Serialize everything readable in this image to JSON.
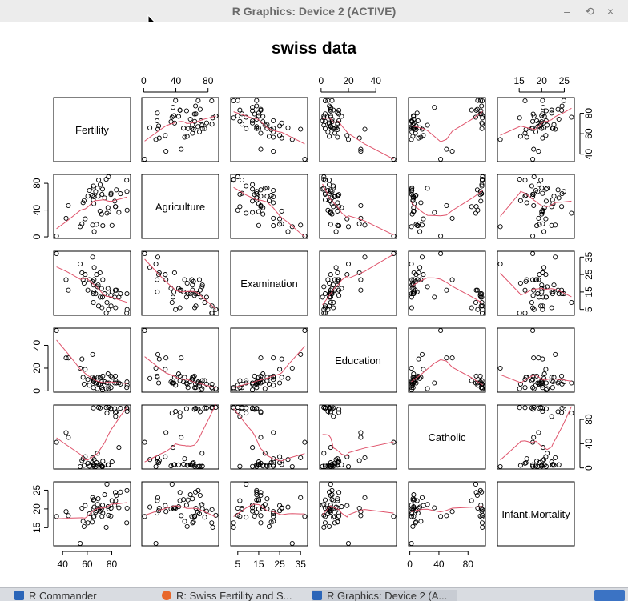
{
  "window": {
    "title": "R Graphics: Device 2 (ACTIVE)",
    "minimize_glyph": "–",
    "restore_glyph": "⟲",
    "close_glyph": "×"
  },
  "taskbar": {
    "items": [
      {
        "label": "R Commander",
        "icon": "r-icon"
      },
      {
        "label": "R: Swiss Fertility and S...",
        "icon": "firefox-icon"
      },
      {
        "label": "R Graphics: Device 2 (A...",
        "icon": "r-icon"
      }
    ]
  },
  "colors": {
    "smooth": "#DF536B",
    "points": "#000000",
    "titlebar": "#ececec"
  },
  "chart_data": {
    "type": "scatter",
    "subtype": "pairs-matrix",
    "title": "swiss data",
    "variables": [
      "Fertility",
      "Agriculture",
      "Examination",
      "Education",
      "Catholic",
      "Infant.Mortality"
    ],
    "axis_ranges": {
      "Fertility": [
        35,
        93
      ],
      "Agriculture": [
        1.2,
        89.7
      ],
      "Examination": [
        3,
        37
      ],
      "Education": [
        1,
        53
      ],
      "Catholic": [
        2.15,
        100
      ],
      "Infant.Mortality": [
        10.8,
        26.6
      ]
    },
    "ticks": {
      "Fertility": [
        40,
        60,
        80
      ],
      "Agriculture": [
        0,
        40,
        80
      ],
      "Examination": [
        5,
        15,
        25,
        35
      ],
      "Education": [
        0,
        20,
        40
      ],
      "Catholic": [
        0,
        40,
        80
      ],
      "Infant.Mortality": [
        15,
        20,
        25
      ]
    },
    "tick_labels": {
      "top": {
        "Agriculture": [
          "0",
          "40",
          "80"
        ],
        "Education": [
          "0",
          "20",
          "40"
        ],
        "Infant.Mortality": [
          "15",
          "20",
          "25"
        ]
      },
      "bottom": {
        "Fertility": [
          "40",
          "60",
          "80"
        ],
        "Examination": [
          "5",
          "15",
          "25",
          "35"
        ],
        "Catholic": [
          "0",
          "40",
          "80"
        ]
      },
      "left": {
        "Agriculture": [
          "0",
          "40",
          "80"
        ],
        "Education": [
          "0",
          "20",
          "40"
        ],
        "Infant.Mortality": [
          "15",
          "20",
          "25"
        ]
      },
      "right": {
        "Fertility": [
          "40",
          "60",
          "80"
        ],
        "Examination": [
          "5",
          "15",
          "25",
          "35"
        ],
        "Catholic": [
          "0",
          "40",
          "80"
        ]
      }
    },
    "data": {
      "Fertility": [
        80.2,
        83.1,
        92.5,
        85.8,
        76.9,
        76.1,
        83.8,
        92.4,
        82.4,
        82.9,
        87.1,
        64.1,
        66.9,
        68.9,
        61.7,
        68.3,
        71.7,
        55.7,
        54.3,
        65.1,
        65.5,
        65.0,
        56.6,
        57.4,
        72.5,
        74.2,
        72.0,
        60.5,
        58.3,
        65.4,
        75.5,
        69.3,
        77.3,
        70.5,
        79.4,
        65.0,
        92.2,
        79.3,
        70.4,
        65.7,
        72.7,
        64.4,
        77.6,
        67.6,
        35.0,
        44.7,
        42.8
      ],
      "Agriculture": [
        17.0,
        45.1,
        39.7,
        36.5,
        43.5,
        35.3,
        70.2,
        67.8,
        53.3,
        45.2,
        64.5,
        62.0,
        67.5,
        60.7,
        69.3,
        72.6,
        34.0,
        19.4,
        15.2,
        73.0,
        59.8,
        55.1,
        50.9,
        54.1,
        71.2,
        58.1,
        63.5,
        60.8,
        26.8,
        49.5,
        85.9,
        84.9,
        89.7,
        78.2,
        64.9,
        75.9,
        84.6,
        63.1,
        38.4,
        7.7,
        16.7,
        17.6,
        37.6,
        18.7,
        1.2,
        46.6,
        27.7
      ],
      "Examination": [
        15,
        6,
        5,
        12,
        17,
        9,
        16,
        14,
        12,
        16,
        14,
        21,
        14,
        19,
        22,
        18,
        17,
        26,
        31,
        19,
        22,
        14,
        22,
        20,
        12,
        14,
        6,
        16,
        25,
        15,
        3,
        7,
        5,
        12,
        7,
        9,
        3,
        13,
        26,
        29,
        22,
        35,
        15,
        25,
        37,
        16,
        22
      ],
      "Education": [
        12,
        9,
        5,
        7,
        15,
        7,
        7,
        8,
        7,
        13,
        6,
        12,
        7,
        12,
        5,
        2,
        8,
        28,
        20,
        9,
        10,
        3,
        12,
        6,
        1,
        8,
        3,
        10,
        19,
        8,
        2,
        6,
        2,
        6,
        3,
        9,
        3,
        13,
        12,
        11,
        13,
        32,
        7,
        7,
        53,
        29,
        29
      ],
      "Catholic": [
        9.96,
        84.84,
        93.4,
        33.77,
        5.16,
        90.57,
        92.85,
        97.16,
        97.67,
        91.38,
        98.61,
        8.52,
        2.27,
        4.43,
        2.82,
        24.2,
        3.3,
        12.11,
        2.15,
        2.84,
        5.23,
        4.52,
        15.14,
        4.2,
        2.4,
        5.23,
        2.56,
        7.72,
        18.46,
        6.1,
        99.71,
        99.68,
        100.0,
        98.96,
        98.22,
        99.06,
        99.46,
        96.83,
        5.62,
        13.79,
        11.22,
        16.92,
        4.97,
        8.65,
        42.34,
        50.43,
        58.33
      ],
      "Infant.Mortality": [
        22.2,
        22.2,
        20.2,
        20.3,
        20.6,
        26.6,
        23.6,
        24.9,
        21.0,
        24.4,
        24.5,
        16.5,
        19.1,
        22.7,
        18.7,
        21.2,
        20.0,
        20.2,
        10.8,
        20.0,
        18.0,
        22.4,
        16.7,
        15.3,
        21.0,
        23.8,
        18.0,
        16.3,
        20.9,
        22.5,
        15.1,
        19.8,
        18.3,
        19.4,
        20.2,
        17.8,
        16.3,
        18.1,
        20.3,
        20.5,
        18.9,
        23.0,
        20.0,
        19.5,
        18.0,
        18.2,
        19.3
      ]
    },
    "smooth": "lowess (panel.smooth)",
    "legend": "none"
  }
}
